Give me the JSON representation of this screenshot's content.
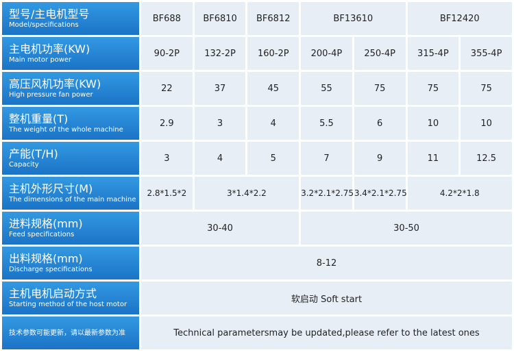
{
  "table": {
    "rows": [
      {
        "label": "型号/主电机型号",
        "label_en": "Model/specifications",
        "cells": [
          "BF688",
          "BF6810",
          "BF6812",
          "BF13610",
          "BF12420"
        ]
      },
      {
        "label": "主电机功率(KW)",
        "label_en": "Main motor power",
        "cells": [
          "90-2P",
          "132-2P",
          "160-2P",
          "200-4P",
          "250-4P",
          "315-4P",
          "355-4P"
        ]
      },
      {
        "label": "高压风机功率(KW)",
        "label_en": "High pressure fan power",
        "cells": [
          "22",
          "37",
          "45",
          "55",
          "75",
          "75",
          "75"
        ]
      },
      {
        "label": "整机重量(T)",
        "label_en": "The weight of the whole machine",
        "cells": [
          "2.9",
          "3",
          "4",
          "5.5",
          "6",
          "10",
          "10"
        ]
      },
      {
        "label": "产能(T/H)",
        "label_en": "Capacity",
        "cells": [
          "3",
          "4",
          "5",
          "7",
          "9",
          "11",
          "12.5"
        ]
      },
      {
        "label": "主机外形尺寸(M)",
        "label_en": "The dimensions of the main machine",
        "cells": [
          "2.8*1.5*2",
          "3*1.4*2.2",
          "3.2*2.1*2.75",
          "3.4*2.1*2.75",
          "4.2*2*1.8"
        ]
      },
      {
        "label": "进料规格(mm)",
        "label_en": "Feed specifications",
        "cells": [
          "30-40",
          "30-50"
        ]
      },
      {
        "label": "出料规格(mm)",
        "label_en": "Discharge specifications",
        "cells": [
          "8-12"
        ]
      },
      {
        "label": "主机电机启动方式",
        "label_en": "Starting method of the host motor",
        "cells": [
          "软启动 Soft start"
        ]
      },
      {
        "label": "技术参数可能更新，请以最新参数为准",
        "cells": [
          "Technical parametersmay be updated,please refer to the latest ones"
        ]
      }
    ]
  }
}
